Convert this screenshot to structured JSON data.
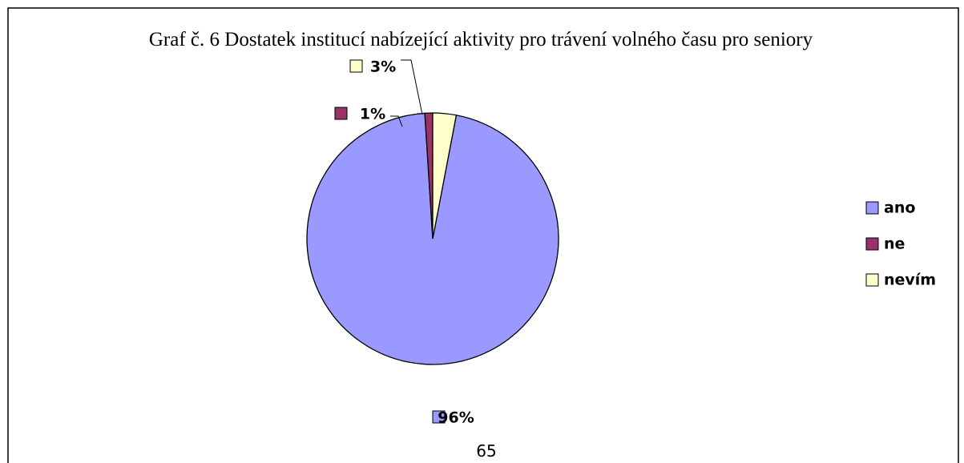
{
  "chart_data": {
    "type": "pie",
    "title": "Graf č. 6 Dostatek institucí nabízející aktivity pro trávení volného času pro seniory",
    "categories": [
      "ano",
      "ne",
      "nevím"
    ],
    "values": [
      96,
      1,
      3
    ],
    "value_labels": [
      "96%",
      "1%",
      "3%"
    ],
    "colors": [
      "#9999ff",
      "#993366",
      "#ffffcc"
    ],
    "legend": "right"
  },
  "page_number": "65"
}
